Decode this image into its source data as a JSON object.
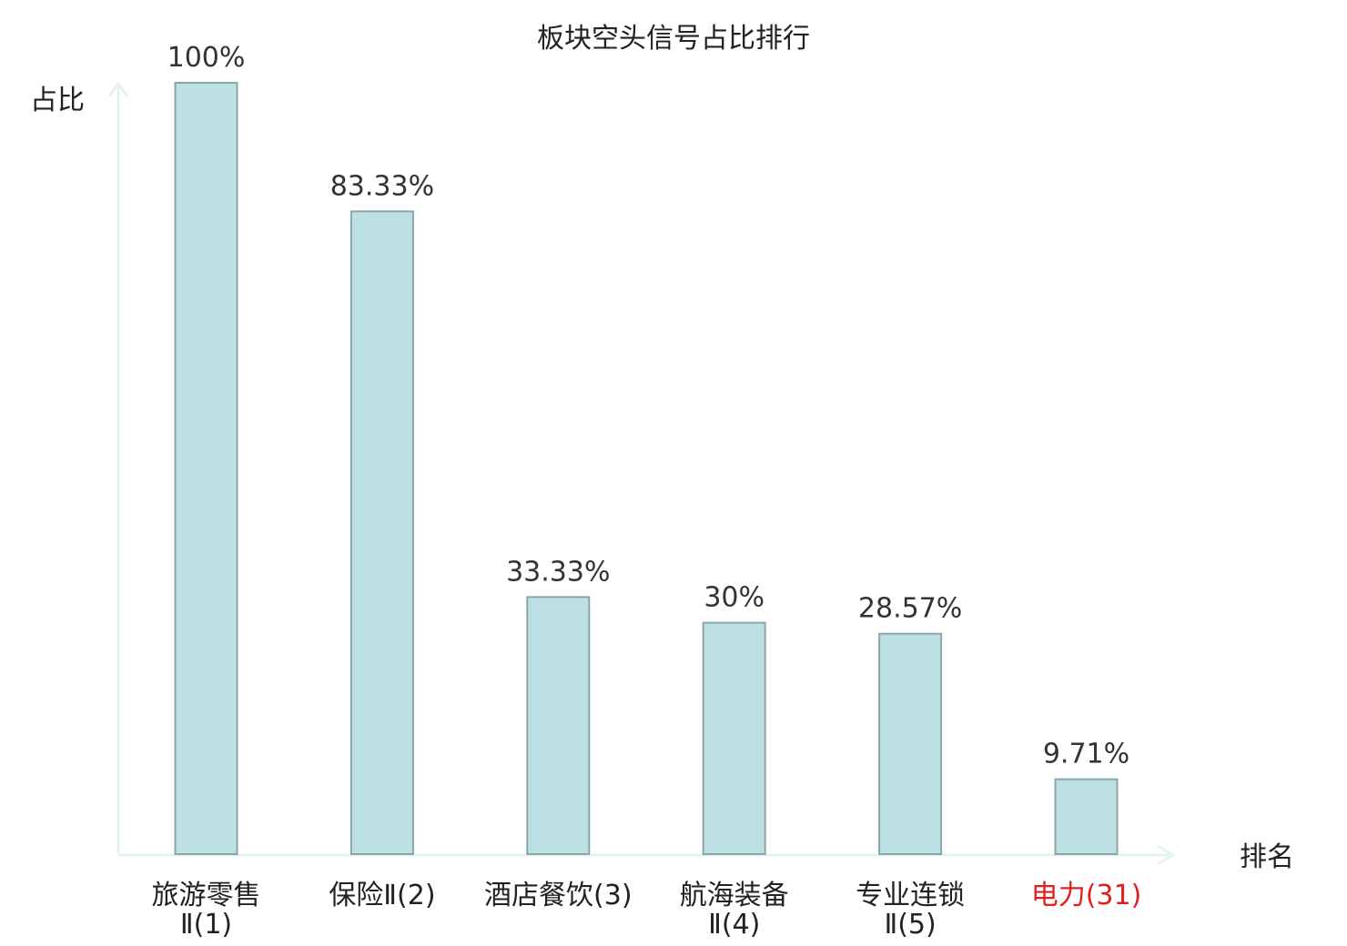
{
  "chart_data": {
    "type": "bar",
    "title": "板块空头信号占比排行",
    "ylabel": "占比",
    "xlabel": "排名",
    "ylim": [
      0,
      100
    ],
    "grid": false,
    "categories": [
      [
        "旅游零售",
        "Ⅱ(1)"
      ],
      [
        "保险Ⅱ(2)"
      ],
      [
        "酒店餐饮(3)"
      ],
      [
        "航海装备",
        "Ⅱ(4)"
      ],
      [
        "专业连锁",
        "Ⅱ(5)"
      ],
      [
        "电力(31)"
      ]
    ],
    "values": [
      100,
      83.33,
      33.33,
      30,
      28.57,
      9.71
    ],
    "value_labels": [
      "100%",
      "83.33%",
      "33.33%",
      "30%",
      "28.57%",
      "9.71%"
    ],
    "highlight_index": 5,
    "colors": {
      "bar_fill": "#bce0e3",
      "bar_stroke": "#8aa6a9",
      "axis": "#e3f3f1",
      "highlight_text": "#e02020"
    }
  }
}
